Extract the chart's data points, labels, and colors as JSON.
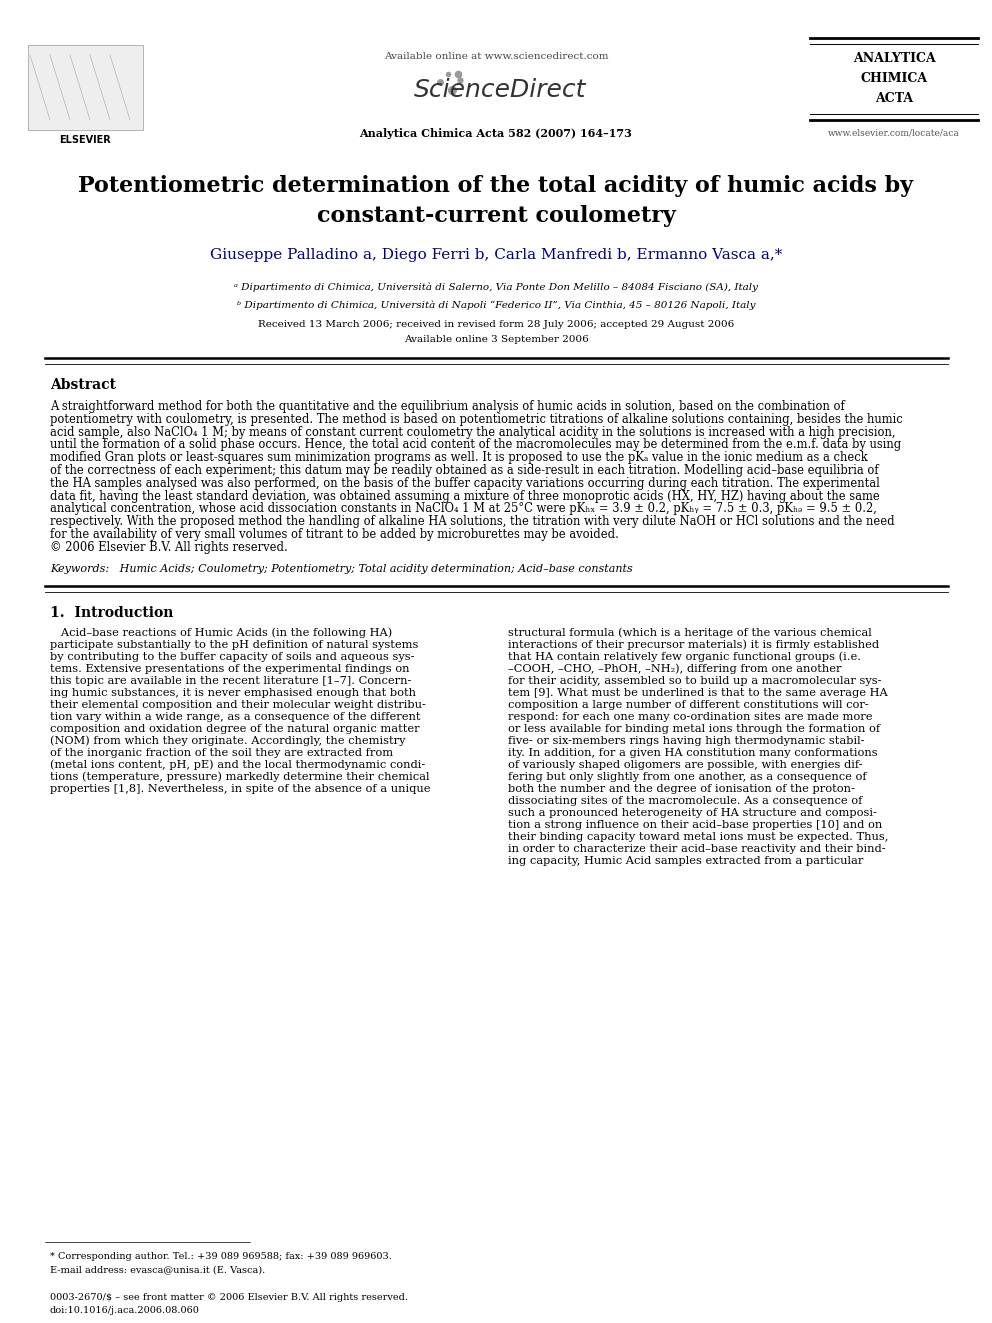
{
  "page_width": 9.92,
  "page_height": 13.23,
  "bg_color": "#ffffff",
  "available_online": "Available online at www.sciencedirect.com",
  "journal_name": "Analytica Chimica Acta 582 (2007) 164–173",
  "website": "www.elsevier.com/locate/aca",
  "title_line1": "Potentiometric determination of the total acidity of humic acids by",
  "title_line2": "constant-current coulometry",
  "authors": "Giuseppe Palladino a, Diego Ferri b, Carla Manfredi b, Ermanno Vasca a,*",
  "affil_a": "ᵃ Dipartimento di Chimica, Università di Salerno, Via Ponte Don Melillo – 84084 Fisciano (SA), Italy",
  "affil_b": "ᵇ Dipartimento di Chimica, Università di Napoli “Federico II”, Via Cinthia, 45 – 80126 Napoli, Italy",
  "received": "Received 13 March 2006; received in revised form 28 July 2006; accepted 29 August 2006",
  "available": "Available online 3 September 2006",
  "abstract_title": "Abstract",
  "abstract_lines": [
    "A straightforward method for both the quantitative and the equilibrium analysis of humic acids in solution, based on the combination of",
    "potentiometry with coulometry, is presented. The method is based on potentiometric titrations of alkaline solutions containing, besides the humic",
    "acid sample, also NaClO₄ 1 M; by means of constant current coulometry the analytical acidity in the solutions is increased with a high precision,",
    "until the formation of a solid phase occurs. Hence, the total acid content of the macromolecules may be determined from the e.m.f. data by using",
    "modified Gran plots or least-squares sum minimization programs as well. It is proposed to use the pKₐ value in the ionic medium as a check",
    "of the correctness of each experiment; this datum may be readily obtained as a side-result in each titration. Modelling acid–base equilibria of",
    "the HA samples analysed was also performed, on the basis of the buffer capacity variations occurring during each titration. The experimental",
    "data fit, having the least standard deviation, was obtained assuming a mixture of three monoprotic acids (HX, HY, HZ) having about the same",
    "analytical concentration, whose acid dissociation constants in NaClO₄ 1 M at 25°C were pKₕₓ = 3.9 ± 0.2, pKₕᵧ = 7.5 ± 0.3, pKₕₔ = 9.5 ± 0.2,",
    "respectively. With the proposed method the handling of alkaline HA solutions, the titration with very dilute NaOH or HCl solutions and the need",
    "for the availability of very small volumes of titrant to be added by microburettes may be avoided.",
    "© 2006 Elsevier B.V. All rights reserved."
  ],
  "keywords": "Keywords:   Humic Acids; Coulometry; Potentiometry; Total acidity determination; Acid–base constants",
  "section1_title": "1.  Introduction",
  "intro_col1_lines": [
    "   Acid–base reactions of Humic Acids (in the following HA)",
    "participate substantially to the pH definition of natural systems",
    "by contributing to the buffer capacity of soils and aqueous sys-",
    "tems. Extensive presentations of the experimental findings on",
    "this topic are available in the recent literature [1–7]. Concern-",
    "ing humic substances, it is never emphasised enough that both",
    "their elemental composition and their molecular weight distribu-",
    "tion vary within a wide range, as a consequence of the different",
    "composition and oxidation degree of the natural organic matter",
    "(NOM) from which they originate. Accordingly, the chemistry",
    "of the inorganic fraction of the soil they are extracted from",
    "(metal ions content, pH, pE) and the local thermodynamic condi-",
    "tions (temperature, pressure) markedly determine their chemical",
    "properties [1,8]. Nevertheless, in spite of the absence of a unique"
  ],
  "intro_col2_lines": [
    "structural formula (which is a heritage of the various chemical",
    "interactions of their precursor materials) it is firmly established",
    "that HA contain relatively few organic functional groups (i.e.",
    "–COOH, –CHO, –PhOH, –NH₂), differing from one another",
    "for their acidity, assembled so to build up a macromolecular sys-",
    "tem [9]. What must be underlined is that to the same average HA",
    "composition a large number of different constitutions will cor-",
    "respond: for each one many co-ordination sites are made more",
    "or less available for binding metal ions through the formation of",
    "five- or six-members rings having high thermodynamic stabil-",
    "ity. In addition, for a given HA constitution many conformations",
    "of variously shaped oligomers are possible, with energies dif-",
    "fering but only slightly from one another, as a consequence of",
    "both the number and the degree of ionisation of the proton-",
    "dissociating sites of the macromolecule. As a consequence of",
    "such a pronounced heterogeneity of HA structure and composi-",
    "tion a strong influence on their acid–base properties [10] and on",
    "their binding capacity toward metal ions must be expected. Thus,",
    "in order to characterize their acid–base reactivity and their bind-",
    "ing capacity, Humic Acid samples extracted from a particular"
  ],
  "footnote_line1": "* Corresponding author. Tel.: +39 089 969588; fax: +39 089 969603.",
  "footnote_line2": "E-mail address: evasca@unisa.it (E. Vasca).",
  "footer_issn": "0003-2670/$ – see front matter © 2006 Elsevier B.V. All rights reserved.",
  "footer_doi": "doi:10.1016/j.aca.2006.08.060"
}
